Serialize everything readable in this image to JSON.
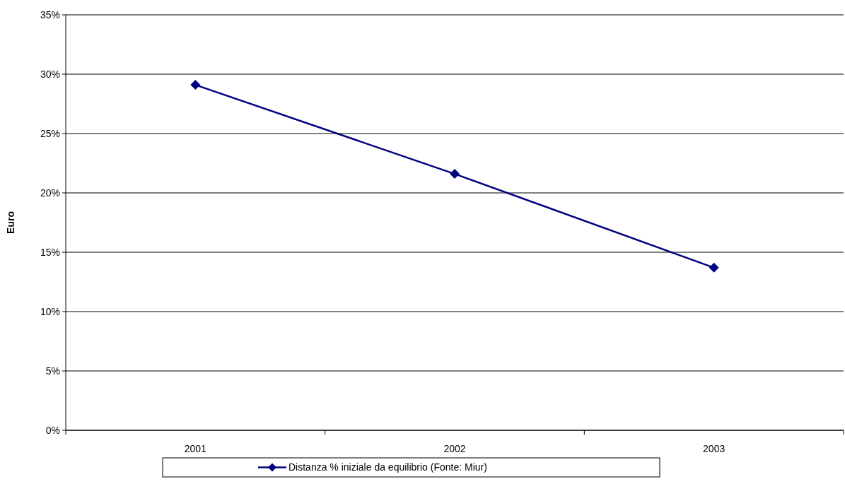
{
  "chart_data": {
    "type": "line",
    "ylabel": "Euro",
    "categories": [
      "2001",
      "2002",
      "2003"
    ],
    "series": [
      {
        "name": "Distanza % iniziale da equilibrio (Fonte: Miur)",
        "color": "#000080",
        "values": [
          29.1,
          21.6,
          13.7
        ]
      }
    ],
    "ylim": [
      0,
      35
    ],
    "yticks": [
      {
        "value": 0,
        "label": "0%"
      },
      {
        "value": 5,
        "label": "5%"
      },
      {
        "value": 10,
        "label": "10%"
      },
      {
        "value": 15,
        "label": "15%"
      },
      {
        "value": 20,
        "label": "20%"
      },
      {
        "value": 25,
        "label": "25%"
      },
      {
        "value": 30,
        "label": "30%"
      },
      {
        "value": 35,
        "label": "35%"
      }
    ],
    "grid": "y",
    "legend": "bottom",
    "marker": "diamond",
    "line_style": "solid"
  }
}
